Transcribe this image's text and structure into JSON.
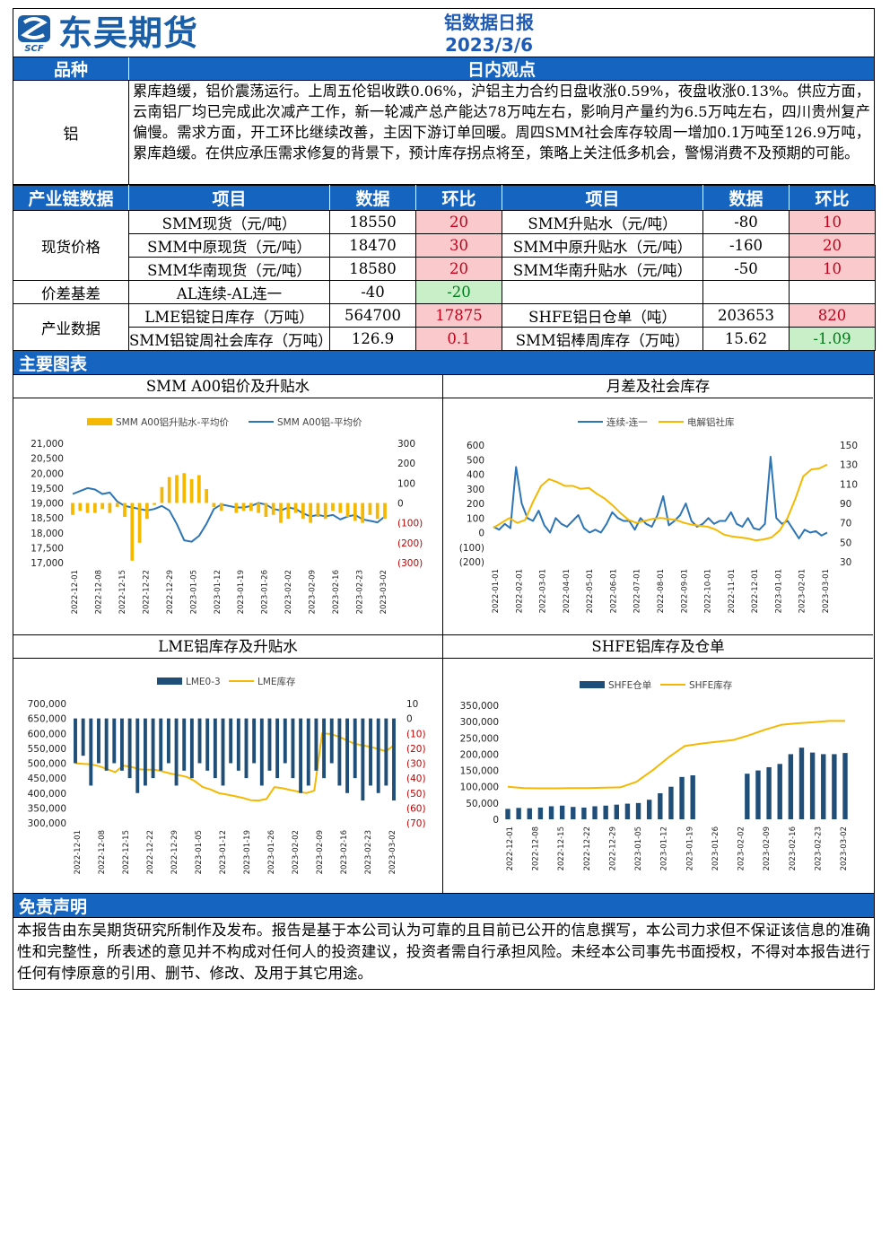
{
  "header": {
    "logo_text": "东吴期货",
    "logo_abbr": "SCF",
    "report_title": "铝数据日报",
    "report_date": "2023/3/6"
  },
  "view_section": {
    "col1_header": "品种",
    "col2_header": "日内观点",
    "variety": "铝",
    "text": "累库趋缓，铝价震荡运行。上周五伦铝收跌0.06%，沪铝主力合约日盘收涨0.59%，夜盘收涨0.13%。供应方面，云南铝厂均已完成此次减产工作，新一轮减产总产能达78万吨左右，影响月产量约为6.5万吨左右，四川贵州复产偏慢。需求方面，开工环比继续改善，主因下游订单回暖。周四SMM社会库存较周一增加0.1万吨至126.9万吨，累库趋缓。在供应承压需求修复的背景下，预计库存拐点将至，策略上关注低多机会，警惕消费不及预期的可能。"
  },
  "chain_table": {
    "headers": [
      "产业链数据",
      "项目",
      "数据",
      "环比",
      "项目",
      "数据",
      "环比"
    ],
    "groups": [
      {
        "name": "现货价格",
        "rows": [
          {
            "item1": "SMM现货（元/吨）",
            "val1": "18550",
            "chg1": "20",
            "chg1_dir": "pos",
            "item2": "SMM升贴水（元/吨）",
            "val2": "-80",
            "chg2": "10",
            "chg2_dir": "pos"
          },
          {
            "item1": "SMM中原现货（元/吨）",
            "val1": "18470",
            "chg1": "30",
            "chg1_dir": "pos",
            "item2": "SMM中原升贴水（元/吨）",
            "val2": "-160",
            "chg2": "20",
            "chg2_dir": "pos"
          },
          {
            "item1": "SMM华南现货（元/吨）",
            "val1": "18580",
            "chg1": "20",
            "chg1_dir": "pos",
            "item2": "SMM华南升贴水（元/吨）",
            "val2": "-50",
            "chg2": "10",
            "chg2_dir": "pos"
          }
        ]
      },
      {
        "name": "价差基差",
        "rows": [
          {
            "item1": "AL连续-AL连一",
            "val1": "-40",
            "chg1": "-20",
            "chg1_dir": "neg",
            "item2": "",
            "val2": "",
            "chg2": "",
            "chg2_dir": ""
          }
        ]
      },
      {
        "name": "产业数据",
        "rows": [
          {
            "item1": "LME铝锭日库存（万吨）",
            "val1": "564700",
            "chg1": "17875",
            "chg1_dir": "pos",
            "item2": "SHFE铝日仓单（吨）",
            "val2": "203653",
            "chg2": "820",
            "chg2_dir": "pos"
          },
          {
            "item1": "SMM铝锭周社会库存（万吨）",
            "val1": "126.9",
            "chg1": "0.1",
            "chg1_dir": "pos",
            "item2": "SMM铝棒周库存（万吨）",
            "val2": "15.62",
            "chg2": "-1.09",
            "chg2_dir": "neg"
          }
        ]
      }
    ]
  },
  "charts_section": {
    "title": "主要图表"
  },
  "colors": {
    "bar_blue": "#1565c0",
    "gold": "#f5b800",
    "series_blue": "#2e75b6",
    "navy": "#1f4e79",
    "pos_bg": "#f9c9cc",
    "neg_bg": "#c9efc9"
  },
  "chart_data": [
    {
      "type": "bar+line",
      "title": "SMM A00铝价及升贴水",
      "legend": [
        "SMM A00铝升贴水-平均价",
        "SMM A00铝-平均价"
      ],
      "legend_position": "top",
      "x_ticks": [
        "2022-12-01",
        "2022-12-08",
        "2022-12-15",
        "2022-12-22",
        "2022-12-29",
        "2023-01-05",
        "2023-01-12",
        "2023-01-19",
        "2023-01-26",
        "2023-02-02",
        "2023-02-09",
        "2023-02-16",
        "2023-02-23",
        "2023-03-02"
      ],
      "y_left_ticks": [
        "21,000",
        "20,500",
        "20,000",
        "19,500",
        "19,000",
        "18,500",
        "18,000",
        "17,500",
        "17,000"
      ],
      "y_left_range": [
        17000,
        21000
      ],
      "y_right_ticks": [
        "300",
        "200",
        "100",
        "0",
        "(100)",
        "(200)",
        "(300)"
      ],
      "y_right_range": [
        -300,
        300
      ],
      "series": [
        {
          "name": "SMM A00铝-平均价",
          "kind": "line",
          "values": [
            19300,
            19400,
            19500,
            19450,
            19300,
            19350,
            19050,
            18900,
            18850,
            18800,
            18750,
            18800,
            18900,
            18750,
            18300,
            17750,
            17700,
            17900,
            18300,
            18800,
            18950,
            18900,
            18850,
            18850,
            18900,
            19000,
            18950,
            18800,
            18750,
            18850,
            18800,
            18650,
            18550,
            18600,
            18550,
            18600,
            18450,
            18550,
            18600,
            18450,
            18400,
            18350,
            18550
          ]
        },
        {
          "name": "SMM A00铝升贴水-平均价",
          "kind": "bar",
          "values": [
            -60,
            -40,
            -50,
            -50,
            -30,
            -50,
            -20,
            -70,
            -290,
            -200,
            -80,
            -10,
            80,
            130,
            140,
            150,
            120,
            140,
            70,
            -20,
            -40,
            0,
            -50,
            -40,
            -40,
            -50,
            -70,
            -60,
            -100,
            -80,
            -50,
            -80,
            -100,
            -70,
            -80,
            -40,
            -50,
            -70,
            -90,
            -100,
            -60,
            -80,
            -80
          ]
        }
      ]
    },
    {
      "type": "line",
      "title": "月差及社会库存",
      "legend": [
        "连续-连一",
        "电解铝社库"
      ],
      "legend_position": "top",
      "x_ticks": [
        "2022-01-01",
        "2022-02-01",
        "2022-03-01",
        "2022-04-01",
        "2022-05-01",
        "2022-06-01",
        "2022-07-01",
        "2022-08-01",
        "2022-09-01",
        "2022-10-01",
        "2022-11-01",
        "2022-12-01",
        "2023-01-01",
        "2023-02-01",
        "2023-03-01"
      ],
      "y_left_ticks": [
        "600",
        "500",
        "400",
        "300",
        "200",
        "100",
        "0",
        "(100)",
        "(200)"
      ],
      "y_left_range": [
        -200,
        600
      ],
      "y_right_ticks": [
        "150",
        "130",
        "110",
        "90",
        "70",
        "50",
        "30"
      ],
      "y_right_range": [
        30,
        150
      ],
      "series": [
        {
          "name": "连续-连一",
          "axis": "left",
          "values": [
            40,
            20,
            60,
            30,
            450,
            200,
            100,
            80,
            150,
            50,
            0,
            100,
            60,
            40,
            80,
            120,
            30,
            0,
            20,
            0,
            60,
            140,
            100,
            80,
            80,
            20,
            100,
            60,
            40,
            120,
            250,
            50,
            80,
            120,
            200,
            80,
            40,
            60,
            100,
            60,
            80,
            80,
            140,
            60,
            40,
            100,
            30,
            20,
            60,
            520,
            100,
            60,
            80,
            20,
            -40,
            20,
            0,
            10,
            -20,
            0
          ]
        },
        {
          "name": "电解铝社库",
          "axis": "right",
          "values": [
            65,
            70,
            75,
            70,
            73,
            92,
            108,
            115,
            112,
            108,
            108,
            105,
            106,
            100,
            95,
            88,
            80,
            73,
            70,
            72,
            74,
            75,
            74,
            73,
            70,
            68,
            67,
            66,
            63,
            58,
            56,
            55,
            54,
            52,
            53,
            55,
            62,
            75,
            95,
            118,
            125,
            126,
            130
          ]
        }
      ]
    },
    {
      "type": "bar+line",
      "title": "LME铝库存及升贴水",
      "legend": [
        "LME0-3",
        "LME库存"
      ],
      "legend_position": "top",
      "x_ticks": [
        "2022-12-01",
        "2022-12-08",
        "2022-12-15",
        "2022-12-22",
        "2022-12-29",
        "2023-01-05",
        "2023-01-12",
        "2023-01-19",
        "2023-01-26",
        "2023-02-02",
        "2023-02-09",
        "2023-02-16",
        "2023-02-23",
        "2023-03-02"
      ],
      "y_left_ticks": [
        "700,000",
        "650,000",
        "600,000",
        "550,000",
        "500,000",
        "450,000",
        "400,000",
        "350,000",
        "300,000"
      ],
      "y_left_range": [
        300000,
        700000
      ],
      "y_right_ticks": [
        "10",
        "0",
        "(10)",
        "(20)",
        "(30)",
        "(40)",
        "(50)",
        "(60)",
        "(70)"
      ],
      "y_right_range": [
        -70,
        10
      ],
      "series": [
        {
          "name": "LME库存",
          "kind": "line",
          "values": [
            500000,
            498000,
            496000,
            490000,
            480000,
            470000,
            492000,
            488000,
            480000,
            478000,
            478000,
            472000,
            465000,
            460000,
            454000,
            440000,
            420000,
            412000,
            400000,
            395000,
            390000,
            384000,
            376000,
            375000,
            380000,
            420000,
            416000,
            410000,
            405000,
            400000,
            408000,
            600000,
            598000,
            590000,
            578000,
            566000,
            560000,
            555000,
            548000,
            540000,
            560000
          ]
        },
        {
          "name": "LME0-3",
          "kind": "bar",
          "values": [
            -30,
            -25,
            -45,
            -30,
            -35,
            -30,
            -35,
            -40,
            -50,
            -45,
            -40,
            -35,
            -30,
            -45,
            -35,
            -40,
            -30,
            -35,
            -40,
            -45,
            -30,
            -35,
            -40,
            -30,
            -45,
            -35,
            -40,
            -30,
            -40,
            -50,
            -45,
            -35,
            -40,
            -30,
            -45,
            -50,
            -40,
            -55,
            -45,
            -50,
            -45,
            -55
          ]
        }
      ]
    },
    {
      "type": "bar+line",
      "title": "SHFE铝库存及仓单",
      "legend": [
        "SHFE仓单",
        "SHFE库存"
      ],
      "legend_position": "top",
      "x_ticks": [
        "2022-12-01",
        "2022-12-08",
        "2022-12-15",
        "2022-12-22",
        "2022-12-29",
        "2023-01-05",
        "2023-01-12",
        "2023-01-19",
        "2023-01-26",
        "2023-02-02",
        "2023-02-09",
        "2023-02-16",
        "2023-02-23",
        "2023-03-02"
      ],
      "y_left_ticks": [
        "350,000",
        "300,000",
        "250,000",
        "200,000",
        "150,000",
        "100,000",
        "50,000",
        "0"
      ],
      "y_left_range": [
        0,
        350000
      ],
      "series": [
        {
          "name": "SHFE库存",
          "kind": "line",
          "values": [
            100000,
            96000,
            95000,
            95000,
            96000,
            96000,
            97000,
            98000,
            115000,
            150000,
            190000,
            225000,
            232000,
            238000,
            243000,
            258000,
            275000,
            290000,
            295000,
            298000,
            302000,
            302000
          ]
        },
        {
          "name": "SHFE仓单",
          "kind": "bar",
          "values": [
            32000,
            35000,
            34000,
            36000,
            40000,
            42000,
            38000,
            36000,
            40000,
            42000,
            45000,
            48000,
            50000,
            60000,
            80000,
            100000,
            130000,
            135000,
            0,
            0,
            0,
            0,
            140000,
            150000,
            160000,
            170000,
            200000,
            220000,
            205000,
            200000,
            200000,
            203653
          ]
        }
      ]
    }
  ],
  "disclaimer": {
    "title": "免责声明",
    "text": "本报告由东吴期货研究所制作及发布。报告是基于本公司认为可靠的且目前已公开的信息撰写，本公司力求但不保证该信息的准确性和完整性，所表述的意见并不构成对任何人的投资建议，投资者需自行承担风险。未经本公司事先书面授权，不得对本报告进行任何有悖原意的引用、删节、修改、及用于其它用途。"
  }
}
